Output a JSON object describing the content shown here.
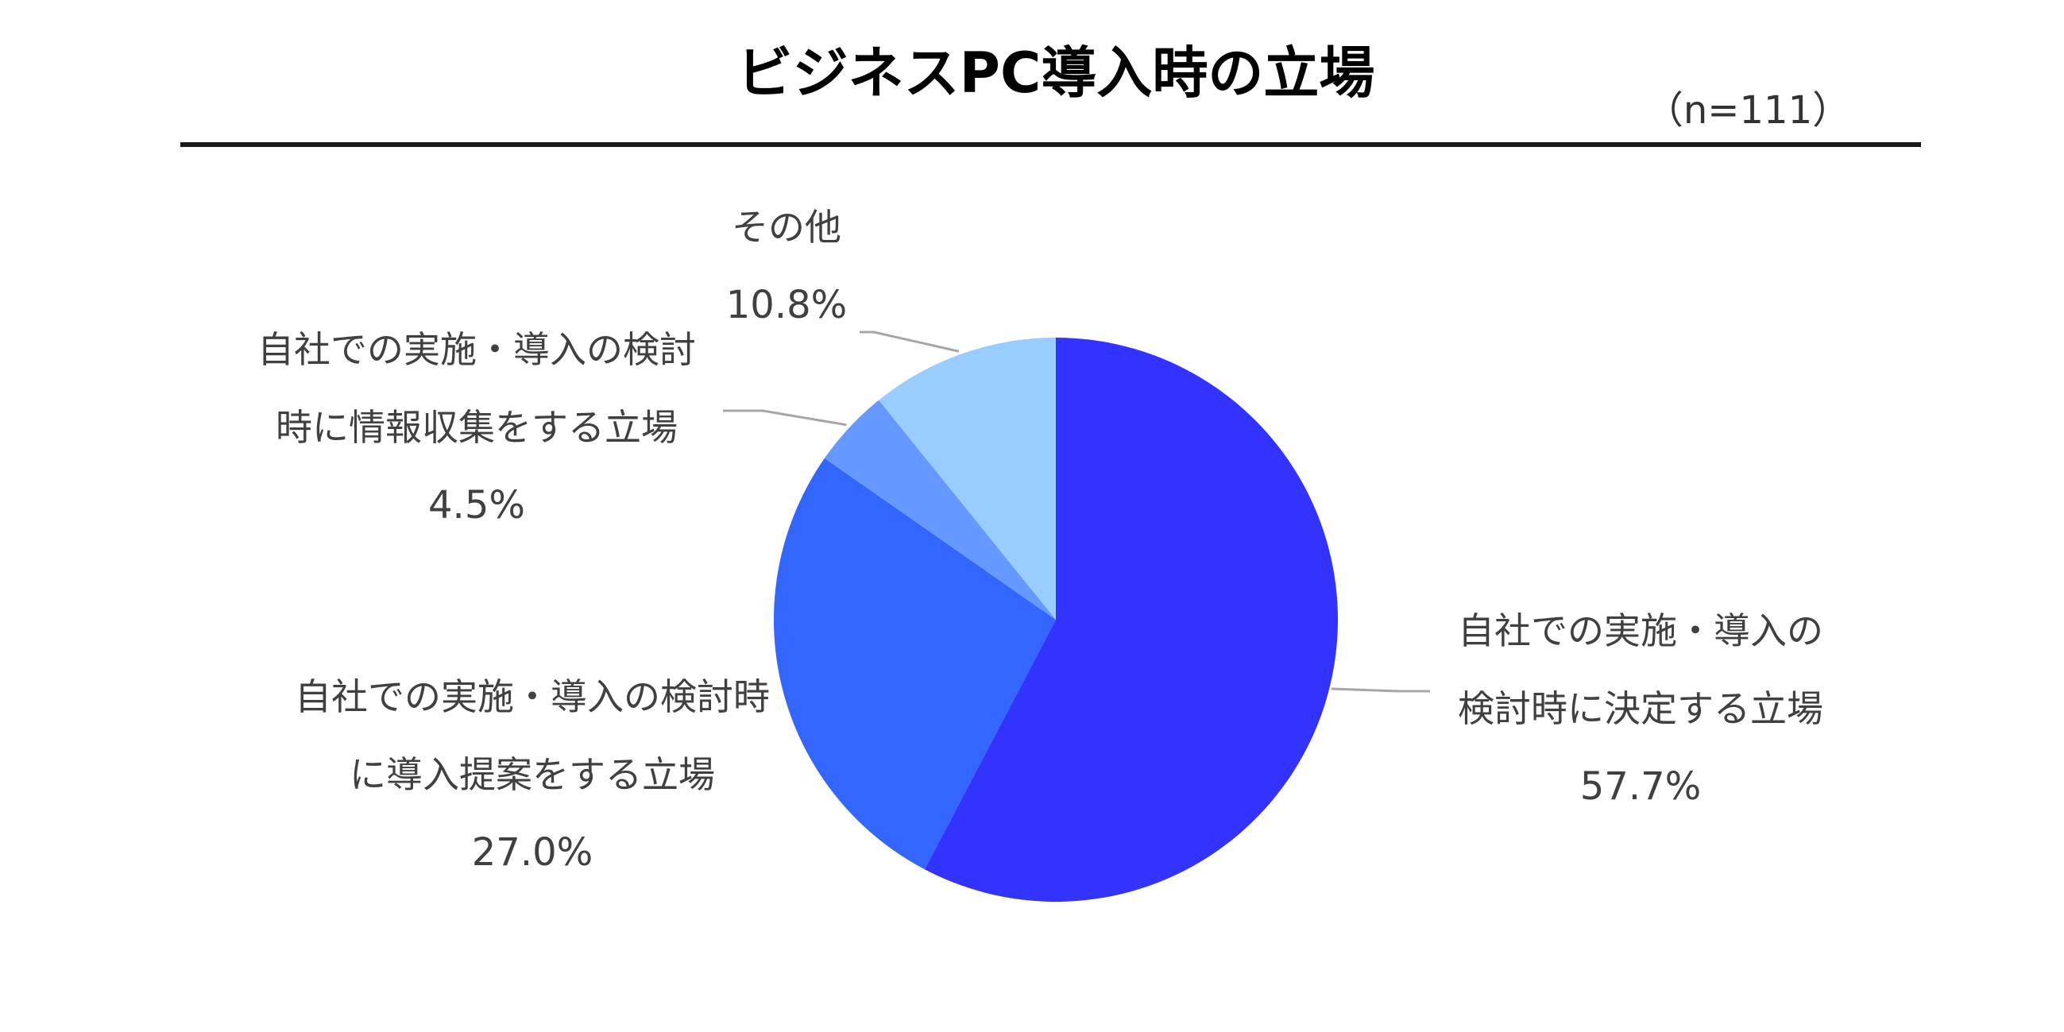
{
  "chart_data": {
    "type": "pie",
    "title": "ビジネスPC導入時の立場",
    "sample_size": "（n=111）",
    "start_angle": "12 o'clock",
    "direction": "clockwise",
    "slices": [
      {
        "label_lines": [
          "自社での実施・導入の",
          "検討時に決定する立場"
        ],
        "value": 57.7,
        "value_label": "57.7%",
        "color": "#3333ff"
      },
      {
        "label_lines": [
          "自社での実施・導入の検討時",
          "に導入提案をする立場"
        ],
        "value": 27.0,
        "value_label": "27.0%",
        "color": "#3366ff"
      },
      {
        "label_lines": [
          "自社での実施・導入の検討",
          "時に情報収集をする立場"
        ],
        "value": 4.5,
        "value_label": "4.5%",
        "color": "#6699ff"
      },
      {
        "label_lines": [
          "その他"
        ],
        "value": 10.8,
        "value_label": "10.8%",
        "color": "#99ccff"
      }
    ]
  }
}
